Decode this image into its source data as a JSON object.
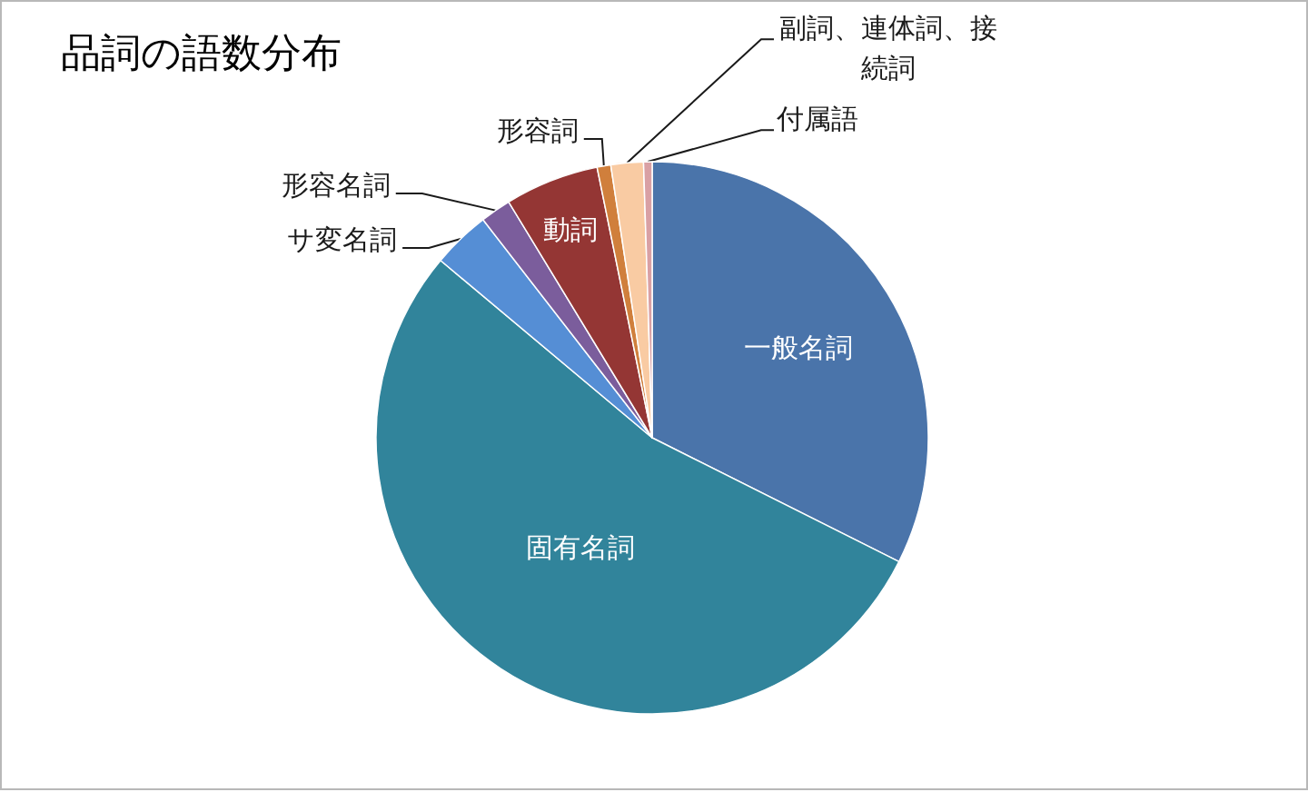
{
  "chart_data": {
    "type": "pie",
    "title": "品詞の語数分布",
    "categories": [
      "一般名詞",
      "固有名詞",
      "サ変名詞",
      "形容名詞",
      "動詞",
      "形容詞",
      "副詞、連体詞、接続詞",
      "付属語"
    ],
    "values": [
      32.4,
      53.7,
      3.4,
      1.8,
      5.5,
      0.8,
      1.9,
      0.5
    ],
    "colors": [
      "#4a74aa",
      "#31849b",
      "#558ed5",
      "#7b5d9c",
      "#943634",
      "#d07f3c",
      "#f9cba3",
      "#d9a0a4"
    ]
  }
}
